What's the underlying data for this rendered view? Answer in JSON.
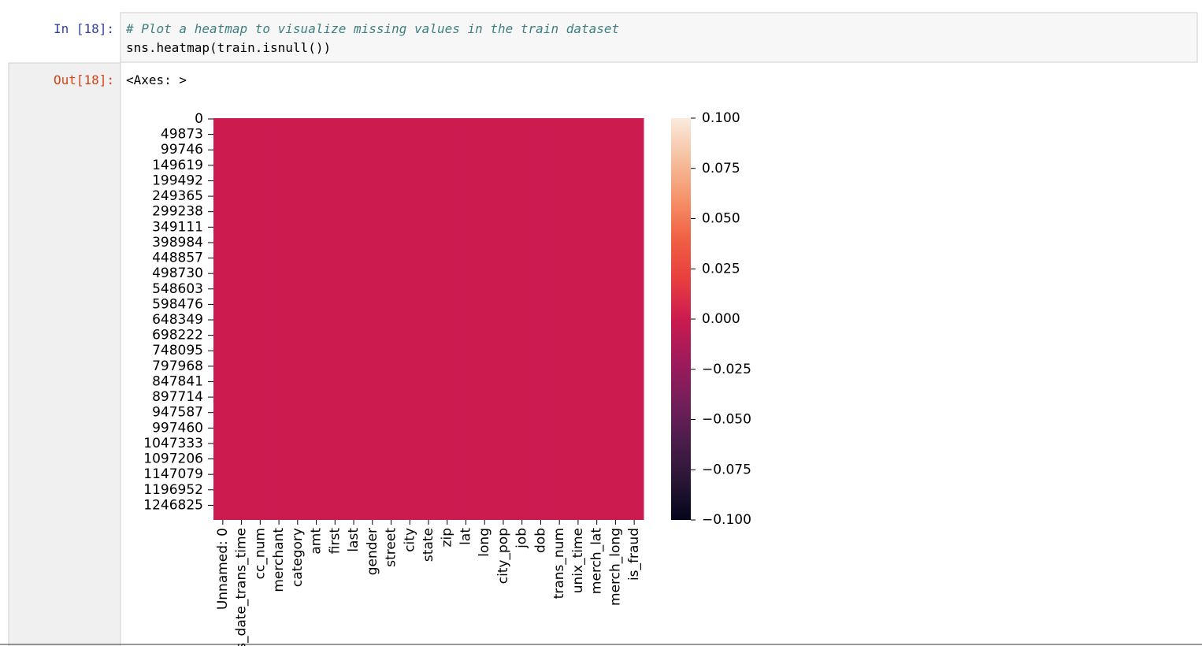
{
  "input": {
    "prompt": "In [18]:",
    "lines": [
      "# Plot a heatmap to visualize missing values in the train dataset",
      "sns.heatmap(train.isnull())"
    ]
  },
  "output": {
    "prompt": "Out[18]:",
    "text": "<Axes: >"
  },
  "chart_data": {
    "type": "heatmap",
    "categories": [
      "Unnamed: 0",
      "trans_date_trans_time",
      "cc_num",
      "merchant",
      "category",
      "amt",
      "first",
      "last",
      "gender",
      "street",
      "city",
      "state",
      "zip",
      "lat",
      "long",
      "city_pop",
      "job",
      "dob",
      "trans_num",
      "unix_time",
      "merch_lat",
      "merch_long",
      "is_fraud"
    ],
    "values": [
      0,
      0,
      0,
      0,
      0,
      0,
      0,
      0,
      0,
      0,
      0,
      0,
      0,
      0,
      0,
      0,
      0,
      0,
      0,
      0,
      0,
      0,
      0
    ],
    "ylim": [
      0,
      1296675
    ],
    "yticks": [
      0,
      49873,
      99746,
      149619,
      199492,
      249365,
      299238,
      349111,
      398984,
      448857,
      498730,
      548603,
      598476,
      648349,
      698222,
      748095,
      797968,
      847841,
      897714,
      947587,
      997460,
      1047333,
      1097206,
      1147079,
      1196952,
      1246825
    ],
    "clim": [
      -0.1,
      0.1
    ],
    "cticks": [
      {
        "value": 0.1,
        "label": "0.100"
      },
      {
        "value": 0.075,
        "label": "0.075"
      },
      {
        "value": 0.05,
        "label": "0.050"
      },
      {
        "value": 0.025,
        "label": "0.025"
      },
      {
        "value": 0,
        "label": "0.000"
      },
      {
        "value": -0.025,
        "label": "−0.025"
      },
      {
        "value": -0.05,
        "label": "−0.050"
      },
      {
        "value": -0.075,
        "label": "−0.075"
      },
      {
        "value": -0.1,
        "label": "−0.100"
      }
    ],
    "colormap": [
      "#03051a",
      "#2a1636",
      "#4c1d4b",
      "#771e5a",
      "#a11a5b",
      "#cb1b4f",
      "#e83f3f",
      "#f06043",
      "#f5936a",
      "#f6c0a0",
      "#faebdd"
    ]
  }
}
